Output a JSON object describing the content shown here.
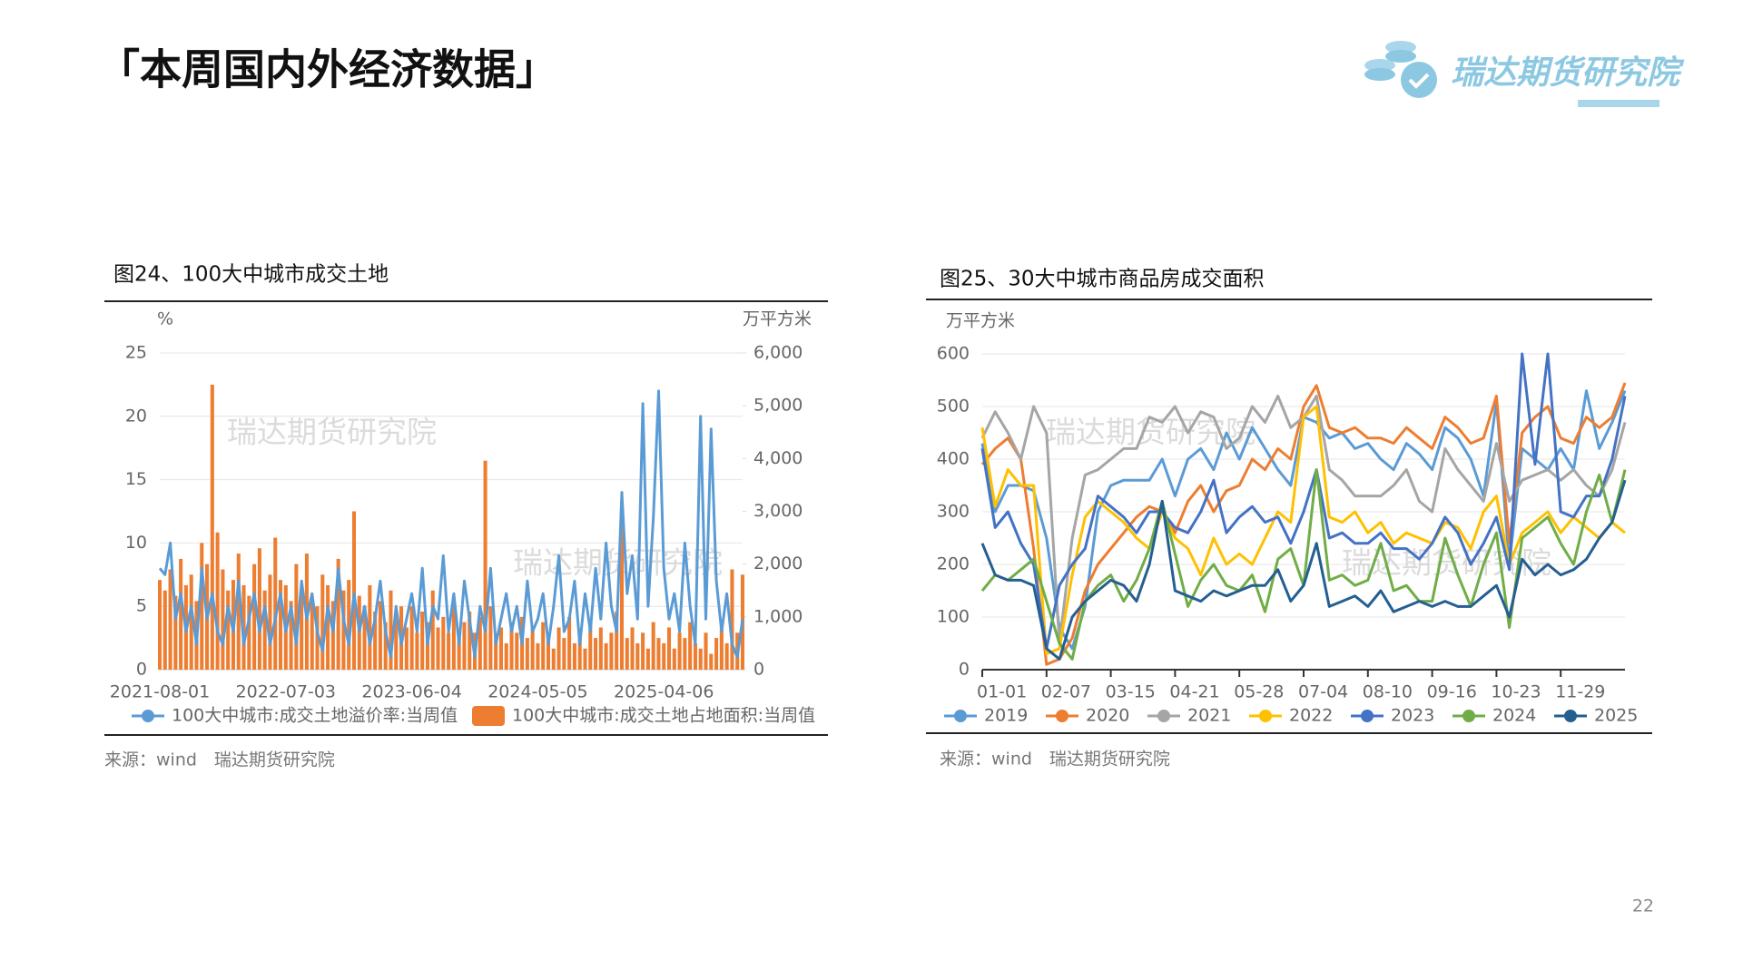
{
  "header": {
    "title": "「本周国内外经济数据」",
    "logo": "瑞达期货研究院"
  },
  "page_number": "22",
  "chart_data": [
    {
      "type": "combo",
      "title": "图24、100大中城市成交土地",
      "y_label": "%",
      "y2_label": "万平方米",
      "watermark": "瑞达期货研究院",
      "source": "来源：wind　瑞达期货研究院",
      "grid": true,
      "categories": [
        "2021-08-01",
        null,
        null,
        null,
        null,
        null,
        null,
        null,
        null,
        null,
        null,
        null,
        null,
        null,
        null,
        null,
        null,
        null,
        null,
        null,
        null,
        null,
        null,
        null,
        "2022-07-03",
        null,
        null,
        null,
        null,
        null,
        null,
        null,
        null,
        null,
        null,
        null,
        null,
        null,
        null,
        null,
        null,
        null,
        null,
        null,
        null,
        null,
        null,
        null,
        "2023-06-04",
        null,
        null,
        null,
        null,
        null,
        null,
        null,
        null,
        null,
        null,
        null,
        null,
        null,
        null,
        null,
        null,
        null,
        null,
        null,
        null,
        null,
        null,
        null,
        "2024-05-05",
        null,
        null,
        null,
        null,
        null,
        null,
        null,
        null,
        null,
        null,
        null,
        null,
        null,
        null,
        null,
        null,
        null,
        null,
        null,
        null,
        null,
        null,
        null,
        "2025-04-06",
        null,
        null,
        null,
        null,
        null,
        null,
        null,
        null,
        null,
        null,
        null,
        null,
        null,
        null,
        null
      ],
      "ylim": [
        0,
        25
      ],
      "yticks": [
        0,
        5,
        10,
        15,
        20,
        25
      ],
      "y2lim": [
        0,
        6000
      ],
      "y2ticks": [
        0,
        {
          "value": 1000,
          "label": "1,000"
        },
        {
          "value": 2000,
          "label": "2,000"
        },
        {
          "value": 3000,
          "label": "3,000"
        },
        {
          "value": 4000,
          "label": "4,000"
        },
        {
          "value": 5000,
          "label": "5,000"
        },
        {
          "value": 6000,
          "label": "6,000"
        }
      ],
      "series": [
        {
          "name": "100大中城市:成交土地溢价率:当周值",
          "type": "line",
          "color": "#5b9bd5",
          "values": [
            8,
            7.5,
            10,
            4,
            6,
            3,
            5,
            2,
            8,
            4,
            6,
            3,
            2,
            5,
            3,
            7,
            2,
            4,
            6,
            3,
            5,
            2,
            4,
            6,
            3,
            5,
            2,
            7,
            4,
            6,
            3,
            1.5,
            5,
            3,
            8,
            4,
            2,
            6,
            3,
            5,
            2,
            4,
            7,
            3,
            1,
            5,
            2,
            4,
            6,
            3,
            8,
            2,
            5,
            4,
            9,
            3,
            6,
            2,
            7,
            4,
            1,
            5,
            3,
            8,
            2,
            4,
            6,
            3,
            5,
            2,
            7,
            3,
            4,
            6,
            2,
            5,
            9,
            3,
            4,
            7,
            2,
            6,
            3,
            8,
            4,
            10,
            5,
            3,
            14,
            6,
            9,
            4,
            21,
            5,
            12,
            22,
            8,
            4,
            6,
            3,
            10,
            5,
            2,
            20,
            4,
            19,
            7,
            3,
            6,
            2,
            1,
            4
          ]
        },
        {
          "name": "100大中城市:成交土地占地面积:当周值",
          "type": "bar",
          "axis": "y2",
          "color": "#ed7d31",
          "values": [
            1700,
            1500,
            1900,
            1400,
            2100,
            1600,
            1800,
            1300,
            2400,
            2000,
            5400,
            2600,
            1900,
            1500,
            1700,
            2200,
            1600,
            1400,
            2000,
            2300,
            1500,
            1800,
            2500,
            1700,
            1600,
            1300,
            2000,
            1500,
            2200,
            1400,
            1200,
            1800,
            1600,
            1300,
            2100,
            1500,
            1700,
            3000,
            1400,
            1200,
            1600,
            1100,
            1300,
            900,
            1500,
            1000,
            1200,
            800,
            1200,
            700,
            1100,
            900,
            1500,
            800,
            1000,
            700,
            1300,
            600,
            900,
            1100,
            700,
            1000,
            3960,
            1200,
            600,
            800,
            500,
            900,
            700,
            1000,
            600,
            800,
            500,
            900,
            700,
            400,
            800,
            600,
            1000,
            500,
            700,
            400,
            900,
            600,
            800,
            500,
            700,
            1100,
            3100,
            600,
            800,
            500,
            700,
            400,
            900,
            600,
            500,
            800,
            400,
            700,
            600,
            900,
            500,
            400,
            700,
            300,
            600,
            800,
            500,
            1900,
            700,
            1800
          ]
        }
      ]
    },
    {
      "type": "line",
      "title": "图25、30大中城市商品房成交面积",
      "y_label": "万平方米",
      "watermark": "瑞达期货研究院",
      "source": "来源：wind　瑞达期货研究院",
      "grid": true,
      "categories": [
        "01-01",
        null,
        null,
        null,
        null,
        "02-07",
        null,
        null,
        null,
        null,
        "03-15",
        null,
        null,
        null,
        null,
        "04-21",
        null,
        null,
        null,
        null,
        "05-28",
        null,
        null,
        null,
        null,
        "07-04",
        null,
        null,
        null,
        null,
        "08-10",
        null,
        null,
        null,
        null,
        "09-16",
        null,
        null,
        null,
        null,
        "10-23",
        null,
        null,
        null,
        null,
        "11-29",
        null,
        null,
        null,
        null,
        null
      ],
      "ylim": [
        0,
        600
      ],
      "yticks": [
        0,
        100,
        200,
        300,
        400,
        500,
        600
      ],
      "series": [
        {
          "name": "2019",
          "color": "#5b9bd5",
          "values": [
            430,
            300,
            350,
            350,
            340,
            250,
            80,
            40,
            120,
            300,
            350,
            360,
            360,
            360,
            400,
            330,
            400,
            420,
            380,
            450,
            400,
            460,
            420,
            380,
            350,
            480,
            470,
            440,
            450,
            420,
            430,
            400,
            380,
            430,
            410,
            380,
            460,
            440,
            400,
            330,
            510,
            200,
            420,
            400,
            380,
            420,
            380,
            530,
            420,
            470,
            530
          ]
        },
        {
          "name": "2020",
          "color": "#ed7d31",
          "values": [
            390,
            420,
            440,
            400,
            230,
            10,
            20,
            60,
            150,
            200,
            230,
            260,
            290,
            310,
            300,
            260,
            320,
            350,
            300,
            340,
            350,
            400,
            380,
            420,
            400,
            500,
            540,
            460,
            450,
            460,
            440,
            440,
            430,
            460,
            440,
            420,
            480,
            460,
            430,
            440,
            520,
            240,
            450,
            480,
            500,
            440,
            430,
            480,
            460,
            480,
            545
          ]
        },
        {
          "name": "2021",
          "color": "#a5a5a5",
          "values": [
            440,
            490,
            450,
            400,
            500,
            450,
            50,
            250,
            370,
            380,
            400,
            420,
            420,
            480,
            470,
            500,
            450,
            490,
            480,
            420,
            440,
            500,
            470,
            520,
            460,
            480,
            520,
            380,
            360,
            330,
            330,
            330,
            350,
            380,
            320,
            300,
            420,
            380,
            350,
            320,
            430,
            320,
            360,
            370,
            380,
            360,
            380,
            350,
            330,
            380,
            470
          ]
        },
        {
          "name": "2022",
          "color": "#ffc000",
          "values": [
            460,
            310,
            380,
            350,
            350,
            30,
            40,
            180,
            290,
            320,
            300,
            280,
            250,
            230,
            300,
            250,
            230,
            180,
            250,
            200,
            220,
            200,
            250,
            300,
            280,
            480,
            500,
            290,
            280,
            300,
            260,
            280,
            240,
            260,
            250,
            240,
            280,
            270,
            230,
            300,
            330,
            200,
            260,
            280,
            300,
            260,
            290,
            270,
            250,
            280,
            260
          ]
        },
        {
          "name": "2023",
          "color": "#4472c4",
          "values": [
            420,
            270,
            300,
            240,
            200,
            40,
            160,
            200,
            230,
            330,
            310,
            290,
            260,
            300,
            300,
            270,
            260,
            300,
            360,
            260,
            290,
            310,
            280,
            290,
            240,
            300,
            380,
            250,
            260,
            240,
            240,
            260,
            230,
            230,
            210,
            240,
            290,
            260,
            200,
            240,
            290,
            190,
            600,
            390,
            600,
            300,
            290,
            330,
            330,
            400,
            520
          ]
        },
        {
          "name": "2024",
          "color": "#70ad47",
          "values": [
            150,
            180,
            170,
            190,
            210,
            130,
            50,
            20,
            130,
            160,
            180,
            130,
            170,
            230,
            320,
            220,
            120,
            170,
            200,
            160,
            150,
            180,
            110,
            210,
            230,
            160,
            380,
            170,
            180,
            160,
            170,
            240,
            150,
            160,
            130,
            130,
            250,
            180,
            120,
            200,
            260,
            80,
            250,
            270,
            290,
            240,
            200,
            300,
            370,
            280,
            380
          ]
        },
        {
          "name": "2025",
          "color": "#255e91",
          "values": [
            240,
            180,
            170,
            170,
            160,
            40,
            20,
            100,
            130,
            150,
            170,
            160,
            130,
            200,
            320,
            150,
            140,
            130,
            150,
            140,
            150,
            160,
            160,
            190,
            130,
            160,
            240,
            120,
            130,
            140,
            120,
            150,
            110,
            120,
            130,
            120,
            130,
            120,
            120,
            140,
            160,
            100,
            210,
            180,
            200,
            180,
            190,
            210,
            250,
            280,
            360
          ]
        }
      ]
    }
  ]
}
